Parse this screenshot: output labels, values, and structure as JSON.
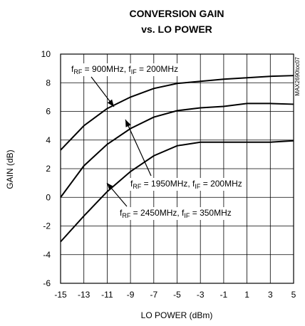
{
  "chart_data": {
    "type": "line",
    "title": [
      "CONVERSION GAIN",
      "vs. LO POWER"
    ],
    "xlabel": "LO POWER (dBm)",
    "ylabel": "GAIN (dB)",
    "side_note": "MAX2690toc07",
    "x": [
      -15,
      -13,
      -11,
      -9,
      -7,
      -5,
      -3,
      -1,
      1,
      3,
      5
    ],
    "xlim": [
      -15,
      5
    ],
    "xticks": [
      -15,
      -13,
      -11,
      -9,
      -7,
      -5,
      -3,
      -1,
      1,
      3,
      5
    ],
    "ylim": [
      -6,
      10
    ],
    "yticks": [
      -6,
      -4,
      -2,
      0,
      2,
      4,
      6,
      8,
      10
    ],
    "grid": true,
    "series": [
      {
        "label_parts": [
          "f",
          "RF",
          " = 900MHz, f",
          "IF",
          " = 200MHz"
        ],
        "color": "#000000",
        "values": [
          3.3,
          5.0,
          6.2,
          7.0,
          7.6,
          7.95,
          8.1,
          8.25,
          8.35,
          8.45,
          8.5
        ]
      },
      {
        "label_parts": [
          "f",
          "RF",
          " = 1950MHz, f",
          "IF",
          " = 200MHz"
        ],
        "color": "#000000",
        "values": [
          0,
          2.2,
          3.7,
          4.8,
          5.6,
          6.05,
          6.25,
          6.35,
          6.55,
          6.55,
          6.5
        ]
      },
      {
        "label_parts": [
          "f",
          "RF",
          " = 2450MHz, f",
          "IF",
          " = 350MHz"
        ],
        "color": "#000000",
        "values": [
          -3.1,
          -1.3,
          0.4,
          1.8,
          2.9,
          3.6,
          3.85,
          3.85,
          3.85,
          3.85,
          3.95
        ]
      }
    ]
  }
}
